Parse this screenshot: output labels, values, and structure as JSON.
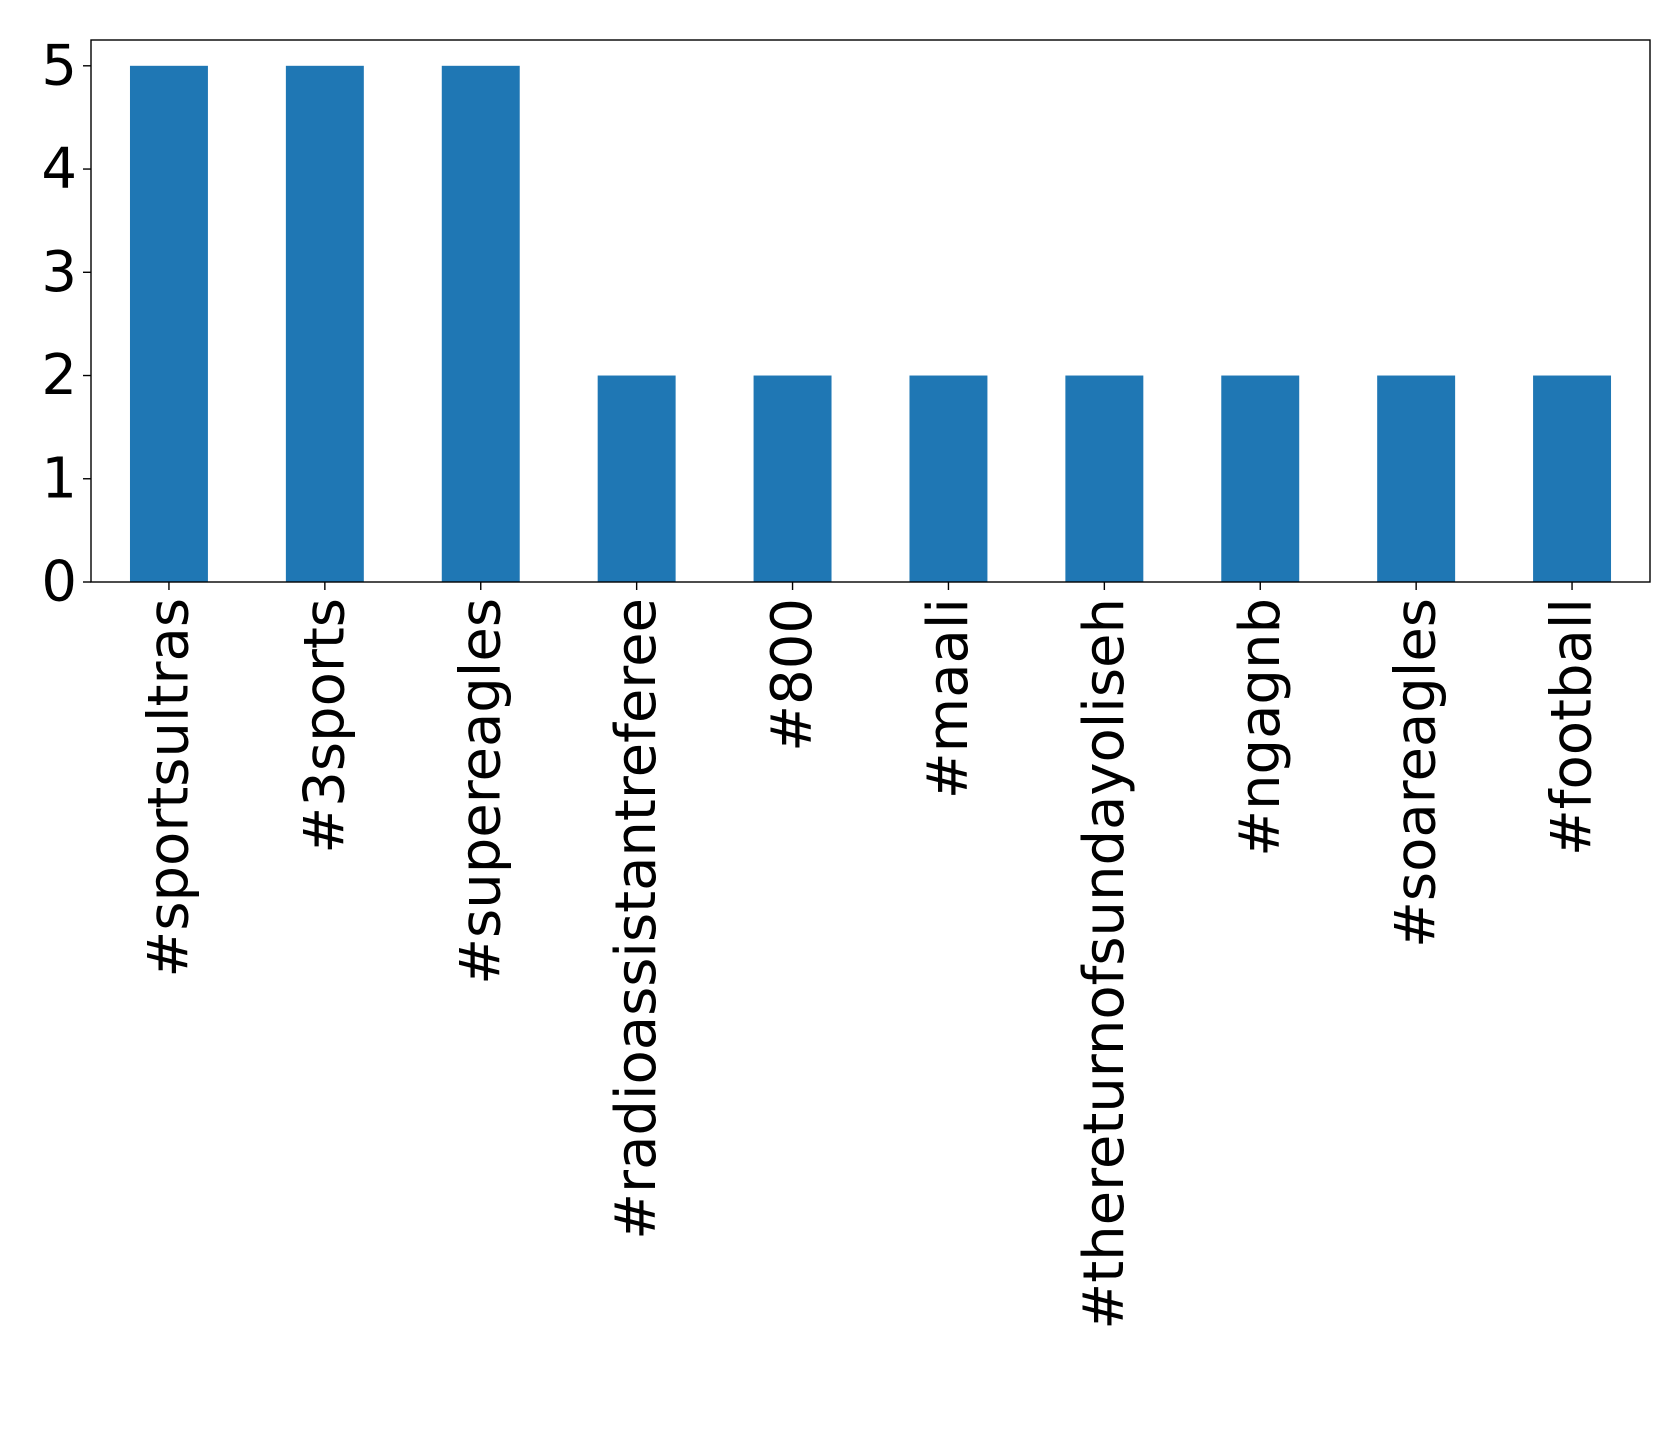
{
  "chart_data": {
    "type": "bar",
    "categories": [
      "#sportsultras",
      "#3sports",
      "#supereagles",
      "#radioassistantreferee",
      "#800",
      "#maali",
      "#thereturnofsundayoliseh",
      "#ngagnb",
      "#soareagles",
      "#football"
    ],
    "values": [
      5,
      5,
      5,
      2,
      2,
      2,
      2,
      2,
      2,
      2
    ],
    "title": "",
    "xlabel": "",
    "ylabel": "",
    "ylim": [
      0,
      5.25
    ],
    "yticks": [
      "0",
      "1",
      "2",
      "3",
      "4",
      "5"
    ],
    "grid": false,
    "legend": "none",
    "bar_color": "#1f77b4",
    "axis_color": "#000000"
  }
}
